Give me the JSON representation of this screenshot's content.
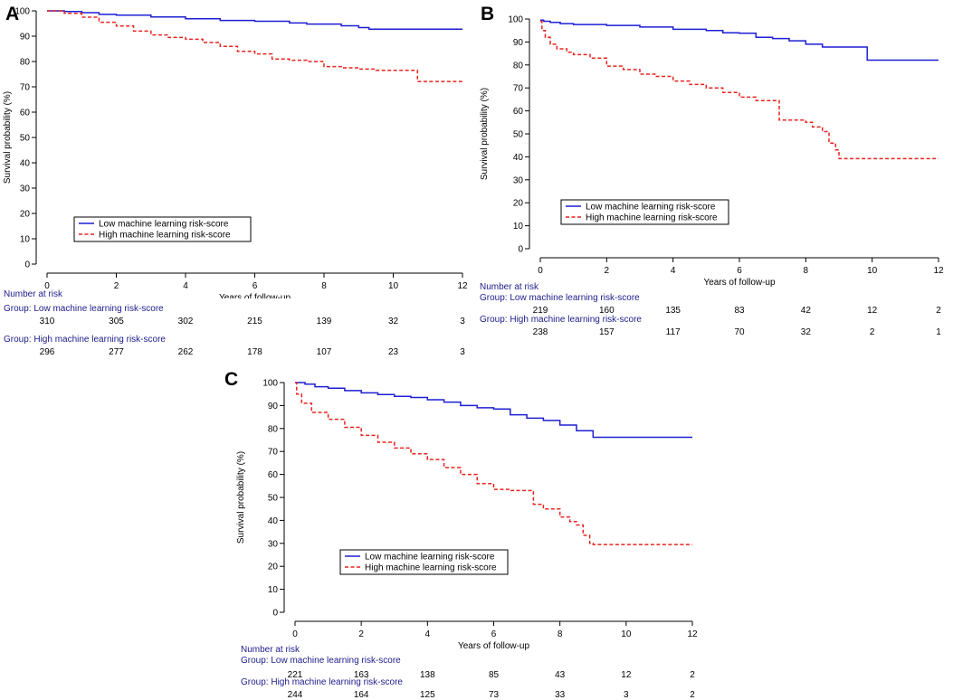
{
  "panels": [
    {
      "letter": "A",
      "chart_data": {
        "type": "line",
        "title": "",
        "xlabel": "Years of follow-up",
        "ylabel": "Survival probability (%)",
        "xlim": [
          0,
          12
        ],
        "ylim": [
          0,
          100
        ],
        "x_ticks": [
          0,
          2,
          4,
          6,
          8,
          10,
          12
        ],
        "y_ticks": [
          0,
          10,
          20,
          30,
          40,
          50,
          60,
          70,
          80,
          90,
          100
        ],
        "legend": {
          "position": "bottom-left"
        },
        "series": [
          {
            "name": "Low machine learning risk-score",
            "color": "#1f1fd4",
            "style": "solid",
            "points": [
              [
                0,
                100
              ],
              [
                0.5,
                99.7
              ],
              [
                1,
                99.3
              ],
              [
                1.5,
                98.6
              ],
              [
                2,
                98.3
              ],
              [
                3,
                97.6
              ],
              [
                4,
                96.9
              ],
              [
                5,
                96.2
              ],
              [
                6,
                95.9
              ],
              [
                7,
                95.2
              ],
              [
                7.5,
                94.8
              ],
              [
                8.5,
                94.1
              ],
              [
                9,
                93.4
              ],
              [
                9.3,
                92.8
              ],
              [
                10,
                92.8
              ],
              [
                12,
                92.8
              ]
            ]
          },
          {
            "name": "High machine learning risk-score",
            "color": "#e8231f",
            "style": "dashed",
            "points": [
              [
                0,
                100
              ],
              [
                0.5,
                99
              ],
              [
                1,
                97.5
              ],
              [
                1.5,
                95.5
              ],
              [
                2,
                94
              ],
              [
                2.5,
                92
              ],
              [
                3,
                90.5
              ],
              [
                3.5,
                89.5
              ],
              [
                4,
                88.8
              ],
              [
                4.5,
                87.5
              ],
              [
                5,
                86
              ],
              [
                5.5,
                84
              ],
              [
                6,
                83
              ],
              [
                6.5,
                81
              ],
              [
                7,
                80.5
              ],
              [
                7.5,
                80
              ],
              [
                8,
                78
              ],
              [
                8.5,
                77.5
              ],
              [
                9,
                77
              ],
              [
                9.5,
                76.5
              ],
              [
                10,
                76.5
              ],
              [
                10.6,
                76.5
              ],
              [
                10.7,
                72.1
              ],
              [
                12,
                72.1
              ]
            ]
          }
        ],
        "risk_table": {
          "header": "Number at risk",
          "times": [
            0,
            2,
            4,
            6,
            8,
            10,
            12
          ],
          "groups": [
            {
              "label": "Group: Low machine learning risk-score",
              "counts": [
                "310",
                "305",
                "302",
                "215",
                "139",
                "32",
                "3"
              ]
            },
            {
              "label": "Group: High machine learning risk-score",
              "counts": [
                "296",
                "277",
                "262",
                "178",
                "107",
                "23",
                "3"
              ]
            }
          ]
        }
      }
    },
    {
      "letter": "B",
      "chart_data": {
        "type": "line",
        "title": "",
        "xlabel": "Years of follow-up",
        "ylabel": "Survival probability (%)",
        "xlim": [
          0,
          12
        ],
        "ylim": [
          0,
          100
        ],
        "x_ticks": [
          0,
          2,
          4,
          6,
          8,
          10,
          12
        ],
        "y_ticks": [
          0,
          10,
          20,
          30,
          40,
          50,
          60,
          70,
          80,
          90,
          100
        ],
        "legend": {
          "position": "bottom-left"
        },
        "series": [
          {
            "name": "Low machine learning risk-score",
            "color": "#1f1fd4",
            "style": "solid",
            "points": [
              [
                0,
                99.5
              ],
              [
                0.1,
                99
              ],
              [
                0.3,
                98.5
              ],
              [
                0.6,
                98
              ],
              [
                1,
                97.6
              ],
              [
                2,
                97.2
              ],
              [
                3,
                96.5
              ],
              [
                4,
                95.5
              ],
              [
                5,
                95
              ],
              [
                5.5,
                94
              ],
              [
                6,
                93.8
              ],
              [
                6.5,
                92
              ],
              [
                7,
                91.5
              ],
              [
                7.5,
                90.5
              ],
              [
                8,
                89
              ],
              [
                8.5,
                87.8
              ],
              [
                9.3,
                87.8
              ],
              [
                9.8,
                87.8
              ],
              [
                9.85,
                82.1
              ],
              [
                12,
                82.1
              ]
            ]
          },
          {
            "name": "High machine learning risk-score",
            "color": "#e8231f",
            "style": "dashed",
            "points": [
              [
                0,
                99
              ],
              [
                0.05,
                95
              ],
              [
                0.15,
                92
              ],
              [
                0.3,
                89
              ],
              [
                0.5,
                87
              ],
              [
                0.8,
                85.5
              ],
              [
                1,
                84.5
              ],
              [
                1.5,
                83
              ],
              [
                2,
                79.5
              ],
              [
                2.5,
                78
              ],
              [
                3,
                76
              ],
              [
                3.5,
                75
              ],
              [
                4,
                73
              ],
              [
                4.5,
                71.5
              ],
              [
                5,
                70
              ],
              [
                5.5,
                68
              ],
              [
                6,
                66
              ],
              [
                6.5,
                64.5
              ],
              [
                7,
                64.5
              ],
              [
                7.1,
                64.5
              ],
              [
                7.2,
                56
              ],
              [
                7.8,
                56
              ],
              [
                8,
                55
              ],
              [
                8.2,
                53
              ],
              [
                8.5,
                51
              ],
              [
                8.7,
                46
              ],
              [
                8.9,
                43
              ],
              [
                9,
                39.2
              ],
              [
                12,
                39.2
              ]
            ]
          }
        ],
        "risk_table": {
          "header": "Number at risk",
          "times": [
            0,
            2,
            4,
            6,
            8,
            10,
            12
          ],
          "groups": [
            {
              "label": "Group: Low machine learning risk-score",
              "counts": [
                "219",
                "160",
                "135",
                "83",
                "42",
                "12",
                "2"
              ]
            },
            {
              "label": "Group: High machine learning risk-score",
              "counts": [
                "238",
                "157",
                "117",
                "70",
                "32",
                "2",
                "1"
              ]
            }
          ]
        }
      }
    },
    {
      "letter": "C",
      "chart_data": {
        "type": "line",
        "title": "",
        "xlabel": "Years of follow-up",
        "ylabel": "Survival probability (%)",
        "xlim": [
          0,
          12
        ],
        "ylim": [
          0,
          100
        ],
        "x_ticks": [
          0,
          2,
          4,
          6,
          8,
          10,
          12
        ],
        "y_ticks": [
          0,
          10,
          20,
          30,
          40,
          50,
          60,
          70,
          80,
          90,
          100
        ],
        "legend": {
          "position": "bottom-left"
        },
        "series": [
          {
            "name": "Low machine learning risk-score",
            "color": "#1f1fd4",
            "style": "solid",
            "points": [
              [
                0,
                100
              ],
              [
                0.3,
                99.3
              ],
              [
                0.6,
                98.2
              ],
              [
                1,
                97.5
              ],
              [
                1.5,
                96.5
              ],
              [
                2,
                95.5
              ],
              [
                2.5,
                94.8
              ],
              [
                3,
                94
              ],
              [
                3.5,
                93.5
              ],
              [
                4,
                92.5
              ],
              [
                4.5,
                91.5
              ],
              [
                5,
                90
              ],
              [
                5.5,
                89
              ],
              [
                6,
                88.5
              ],
              [
                6.5,
                86
              ],
              [
                7,
                84.5
              ],
              [
                7.5,
                83.5
              ],
              [
                8,
                81.5
              ],
              [
                8.5,
                79
              ],
              [
                8.8,
                79
              ],
              [
                9,
                76.2
              ],
              [
                12,
                76.2
              ]
            ]
          },
          {
            "name": "High machine learning risk-score",
            "color": "#e8231f",
            "style": "dashed",
            "points": [
              [
                0,
                100
              ],
              [
                0.05,
                95
              ],
              [
                0.2,
                91
              ],
              [
                0.5,
                87
              ],
              [
                1,
                84
              ],
              [
                1.5,
                80.5
              ],
              [
                2,
                77
              ],
              [
                2.5,
                74
              ],
              [
                3,
                71.5
              ],
              [
                3.5,
                69
              ],
              [
                4,
                66.5
              ],
              [
                4.5,
                63
              ],
              [
                5,
                60
              ],
              [
                5.5,
                56
              ],
              [
                6,
                53.5
              ],
              [
                6.5,
                53
              ],
              [
                7,
                53
              ],
              [
                7.1,
                53
              ],
              [
                7.2,
                47
              ],
              [
                7.5,
                45
              ],
              [
                8,
                41.5
              ],
              [
                8.3,
                39.5
              ],
              [
                8.5,
                38
              ],
              [
                8.7,
                33.5
              ],
              [
                8.9,
                30
              ],
              [
                9,
                29.5
              ],
              [
                12,
                29.5
              ]
            ]
          }
        ],
        "risk_table": {
          "header": "Number at risk",
          "times": [
            0,
            2,
            4,
            6,
            8,
            10,
            12
          ],
          "groups": [
            {
              "label": "Group: Low machine learning risk-score",
              "counts": [
                "221",
                "163",
                "138",
                "85",
                "43",
                "12",
                "2"
              ]
            },
            {
              "label": "Group: High machine learning risk-score",
              "counts": [
                "244",
                "164",
                "125",
                "73",
                "33",
                "3",
                "2"
              ]
            }
          ]
        }
      }
    }
  ]
}
